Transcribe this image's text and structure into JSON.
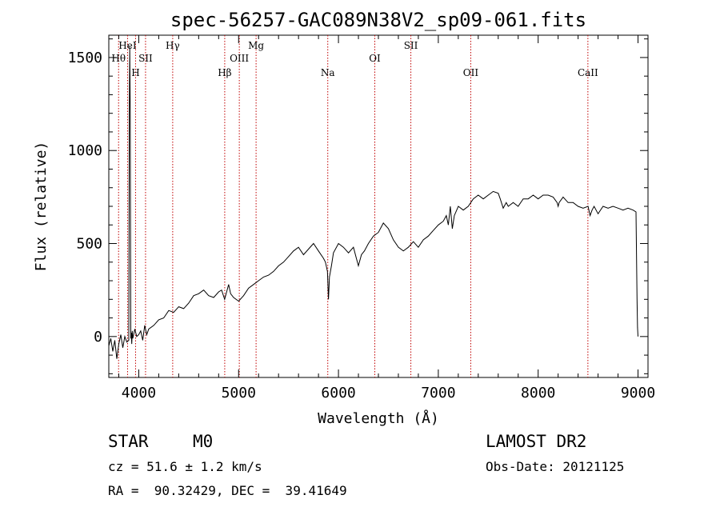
{
  "chart_data": {
    "type": "line",
    "title": "spec-56257-GAC089N38V2_sp09-061.fits",
    "xlabel": "Wavelength (Å)",
    "ylabel": "Flux (relative)",
    "xlim": [
      3700,
      9100
    ],
    "ylim": [
      -220,
      1620
    ],
    "xticks": [
      4000,
      5000,
      6000,
      7000,
      8000,
      9000
    ],
    "yticks": [
      0,
      500,
      1000,
      1500
    ],
    "grid": false,
    "series": [
      {
        "x": [
          3700,
          3720,
          3740,
          3760,
          3780,
          3800,
          3820,
          3840,
          3860,
          3880,
          3900,
          3905,
          3910,
          3915,
          3920,
          3925,
          3930,
          3935,
          3940,
          3960,
          3980,
          4000,
          4020,
          4040,
          4060,
          4080,
          4100,
          4150,
          4200,
          4250,
          4300,
          4350,
          4400,
          4450,
          4500,
          4550,
          4600,
          4650,
          4700,
          4750,
          4800,
          4830,
          4860,
          4880,
          4900,
          4920,
          4950,
          5000,
          5050,
          5100,
          5150,
          5200,
          5250,
          5300,
          5350,
          5400,
          5450,
          5500,
          5550,
          5600,
          5650,
          5700,
          5750,
          5800,
          5850,
          5870,
          5890,
          5900,
          5910,
          5930,
          5950,
          6000,
          6050,
          6100,
          6150,
          6180,
          6200,
          6230,
          6260,
          6300,
          6350,
          6400,
          6450,
          6500,
          6550,
          6600,
          6650,
          6700,
          6750,
          6800,
          6850,
          6900,
          6950,
          7000,
          7050,
          7080,
          7100,
          7120,
          7140,
          7160,
          7200,
          7250,
          7300,
          7350,
          7400,
          7450,
          7500,
          7550,
          7600,
          7620,
          7650,
          7680,
          7700,
          7750,
          7800,
          7850,
          7900,
          7950,
          8000,
          8050,
          8100,
          8150,
          8190,
          8200,
          8210,
          8250,
          8300,
          8350,
          8400,
          8450,
          8500,
          8520,
          8540,
          8560,
          8600,
          8650,
          8700,
          8750,
          8800,
          8850,
          8900,
          8950,
          8980,
          8990,
          8995,
          9000
        ],
        "values": [
          -50,
          -10,
          -80,
          -20,
          -120,
          -40,
          10,
          -60,
          0,
          -30,
          -20,
          1200,
          1560,
          1200,
          -10,
          20,
          -40,
          30,
          -10,
          40,
          0,
          10,
          30,
          -20,
          60,
          10,
          40,
          60,
          90,
          100,
          140,
          130,
          160,
          150,
          180,
          220,
          230,
          250,
          220,
          210,
          240,
          250,
          200,
          240,
          280,
          230,
          210,
          190,
          220,
          260,
          280,
          300,
          320,
          330,
          350,
          380,
          400,
          430,
          460,
          480,
          440,
          470,
          500,
          460,
          420,
          400,
          350,
          200,
          320,
          380,
          450,
          500,
          480,
          450,
          480,
          420,
          380,
          440,
          460,
          500,
          540,
          560,
          610,
          580,
          520,
          480,
          460,
          480,
          510,
          480,
          520,
          540,
          570,
          600,
          620,
          650,
          600,
          700,
          580,
          650,
          700,
          680,
          700,
          740,
          760,
          740,
          760,
          780,
          770,
          740,
          690,
          720,
          700,
          720,
          700,
          740,
          740,
          760,
          740,
          760,
          760,
          750,
          720,
          700,
          720,
          750,
          720,
          720,
          700,
          690,
          700,
          650,
          680,
          700,
          660,
          700,
          690,
          700,
          690,
          680,
          690,
          680,
          670,
          200,
          50,
          0
        ]
      }
    ],
    "spectral_lines": [
      {
        "label": "Hθ",
        "wl": 3798,
        "row": 1
      },
      {
        "label": "HeI",
        "wl": 3888,
        "row": 0
      },
      {
        "label": "H",
        "wl": 3968,
        "row": 2
      },
      {
        "label": "SII",
        "wl": 4068,
        "row": 1
      },
      {
        "label": "Hγ",
        "wl": 4340,
        "row": 0
      },
      {
        "label": "Hβ",
        "wl": 4861,
        "row": 2
      },
      {
        "label": "OIII",
        "wl": 5007,
        "row": 1
      },
      {
        "label": "Mg",
        "wl": 5175,
        "row": 0
      },
      {
        "label": "Na",
        "wl": 5893,
        "row": 2
      },
      {
        "label": "OI",
        "wl": 6364,
        "row": 1
      },
      {
        "label": "SII",
        "wl": 6725,
        "row": 0
      },
      {
        "label": "OII",
        "wl": 7325,
        "row": 2
      },
      {
        "label": "CaII",
        "wl": 8498,
        "row": 2
      }
    ],
    "line_color": "#000000",
    "marker_color": "#c00000"
  },
  "info": {
    "class_label": "STAR",
    "subclass": "M0",
    "survey": "LAMOST DR2",
    "cz": "cz = 51.6 ± 1.2 km/s",
    "obs_date": "Obs-Date: 20121125",
    "coords": "RA =  90.32429, DEC =  39.41649"
  }
}
